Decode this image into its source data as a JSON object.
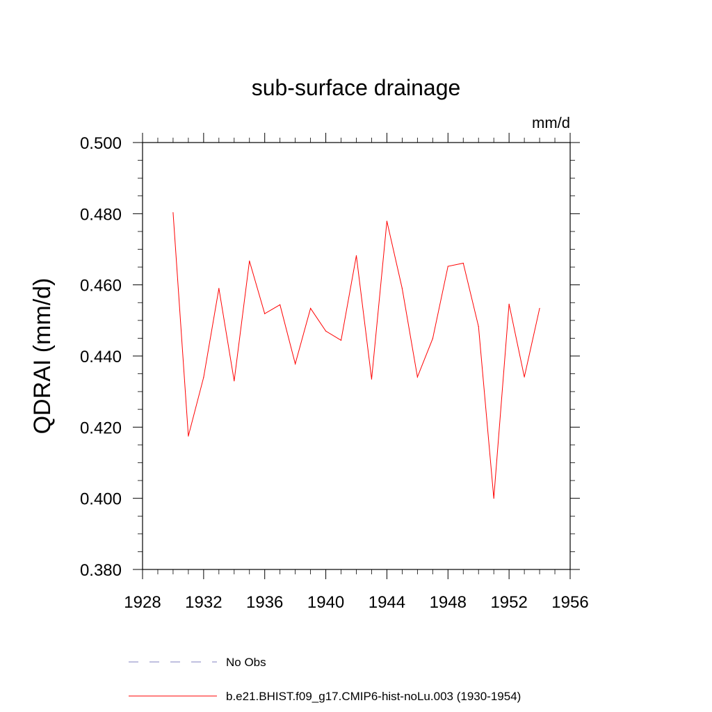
{
  "chart_data": {
    "type": "line",
    "title": "sub-surface drainage",
    "units": "mm/d",
    "ylabel": "QDRAI  (mm/d)",
    "xlabel": "",
    "xlim": [
      1928,
      1956
    ],
    "ylim": [
      0.38,
      0.5
    ],
    "x_ticks": [
      1928,
      1932,
      1936,
      1940,
      1944,
      1948,
      1952,
      1956
    ],
    "x_tick_labels": [
      "1928",
      "1932",
      "1936",
      "1940",
      "1944",
      "1948",
      "1952",
      "1956"
    ],
    "y_ticks": [
      0.38,
      0.4,
      0.42,
      0.44,
      0.46,
      0.48,
      0.5
    ],
    "y_tick_labels": [
      "0.380",
      "0.400",
      "0.420",
      "0.440",
      "0.460",
      "0.480",
      "0.500"
    ],
    "grid": false,
    "legend_position": "bottom",
    "series": [
      {
        "name": "b.e21.BHIST.f09_g17.CMIP6-hist-noLu.003 (1930-1954)",
        "color": "#ff0000",
        "style": "solid",
        "x": [
          1930,
          1931,
          1932,
          1933,
          1934,
          1935,
          1936,
          1937,
          1938,
          1939,
          1940,
          1941,
          1942,
          1943,
          1944,
          1945,
          1946,
          1947,
          1948,
          1949,
          1950,
          1951,
          1952,
          1953,
          1954
        ],
        "values": [
          0.4803,
          0.4175,
          0.434,
          0.459,
          0.433,
          0.4667,
          0.4519,
          0.4544,
          0.4378,
          0.4534,
          0.447,
          0.4444,
          0.4682,
          0.4335,
          0.4779,
          0.459,
          0.4341,
          0.4449,
          0.4652,
          0.4661,
          0.4483,
          0.4,
          0.4546,
          0.4341,
          0.4534
        ]
      }
    ],
    "legend": [
      {
        "label": "No Obs",
        "color": "#8080c0",
        "style": "dashed"
      },
      {
        "label": "b.e21.BHIST.f09_g17.CMIP6-hist-noLu.003 (1930-1954)",
        "color": "#ff0000",
        "style": "solid"
      }
    ]
  }
}
